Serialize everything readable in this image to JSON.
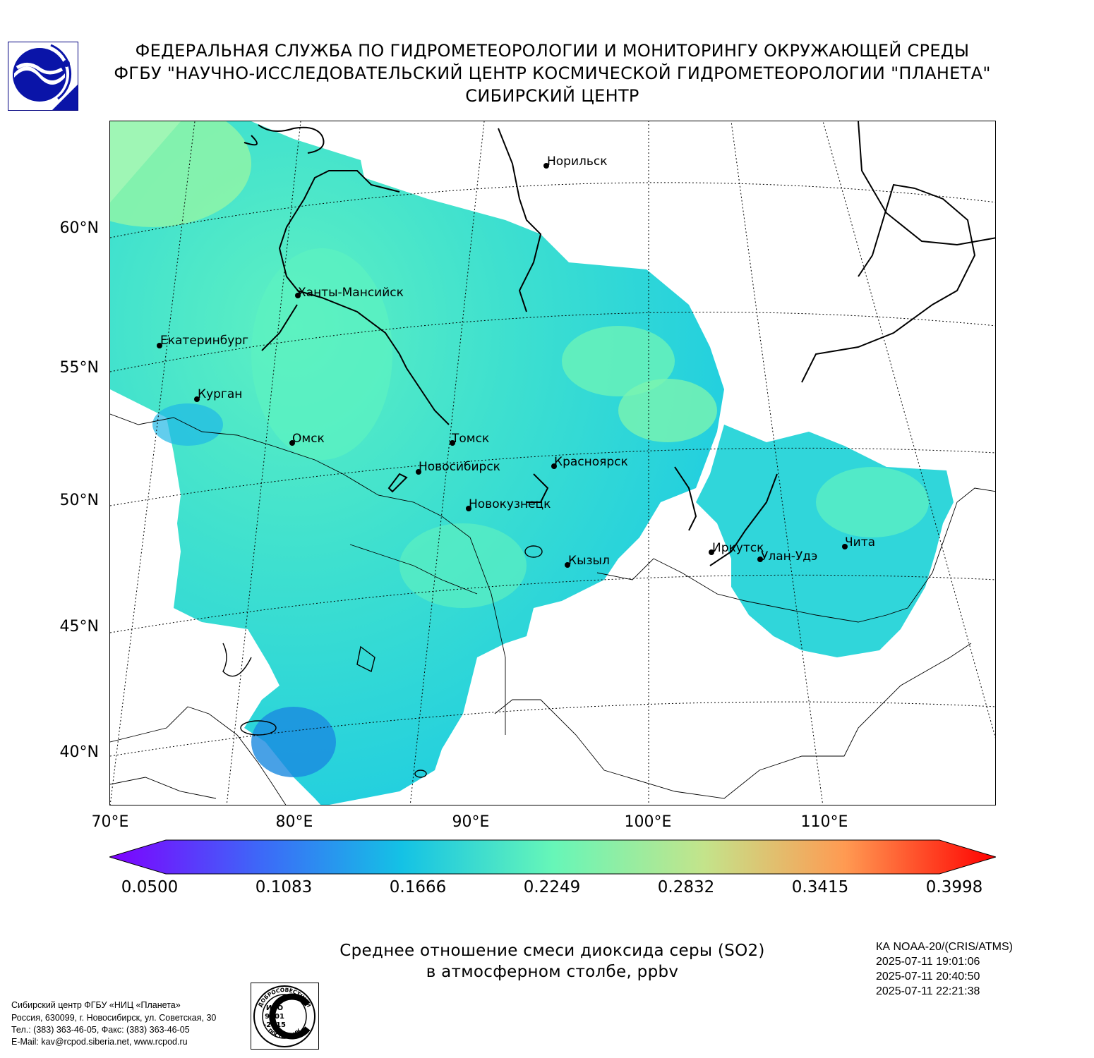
{
  "header": {
    "line1": "ФЕДЕРАЛЬНАЯ СЛУЖБА ПО ГИДРОМЕТЕОРОЛОГИИ И МОНИТОРИНГУ ОКРУЖАЮЩЕЙ СРЕДЫ",
    "line2": "ФГБУ \"НАУЧНО-ИССЛЕДОВАТЕЛЬСКИЙ ЦЕНТР КОСМИЧЕСКОЙ ГИДРОМЕТЕОРОЛОГИИ \"ПЛАНЕТА\"",
    "line3": "СИБИРСКИЙ ЦЕНТР"
  },
  "map": {
    "lat_labels": [
      "60°N",
      "55°N",
      "50°N",
      "45°N",
      "40°N"
    ],
    "lon_labels": [
      "70°E",
      "80°E",
      "90°E",
      "100°E",
      "110°E"
    ],
    "cities": [
      {
        "name": "Норильск"
      },
      {
        "name": "Ханты-Мансийск"
      },
      {
        "name": "Екатеринбург"
      },
      {
        "name": "Курган"
      },
      {
        "name": "Омск"
      },
      {
        "name": "Томск"
      },
      {
        "name": "Новосибирск"
      },
      {
        "name": "Красноярск"
      },
      {
        "name": "Новокузнецк"
      },
      {
        "name": "Иркутск"
      },
      {
        "name": "Улан-Удэ"
      },
      {
        "name": "Чита"
      },
      {
        "name": "Кызыл"
      }
    ]
  },
  "colorbar": {
    "ticks": [
      "0.0500",
      "0.1083",
      "0.1666",
      "0.2249",
      "0.2832",
      "0.3415",
      "0.3998"
    ],
    "min": 0.05,
    "max": 0.3998,
    "extend": "both",
    "colormap": "rainbow"
  },
  "caption": {
    "line1": "Среднее отношение смеси диоксида серы (SO2)",
    "line2": "в атмосферном столбе, ppbv"
  },
  "satellite": {
    "name": "КА NOAA-20/(CRIS/ATMS)",
    "times": [
      "2025-07-11 19:01:06",
      "2025-07-11 20:40:50",
      "2025-07-11 22:21:38"
    ]
  },
  "address": {
    "lines": [
      "Сибирский центр ФГБУ «НИЦ «Планета»",
      "Россия, 630099, г. Новосибирск, ул. Советская, 30",
      "Тел.: (383) 363-46-05, Факс: (383) 363-46-05",
      "E-Mail: kav@rcpod.siberia.net, www.rcpod.ru"
    ]
  },
  "iso_badge": {
    "text": [
      "ДОБРОСОВЕСТНЫЙ",
      "ИСО",
      "9001",
      "-2015",
      "ПОСТАВЩИК"
    ]
  }
}
